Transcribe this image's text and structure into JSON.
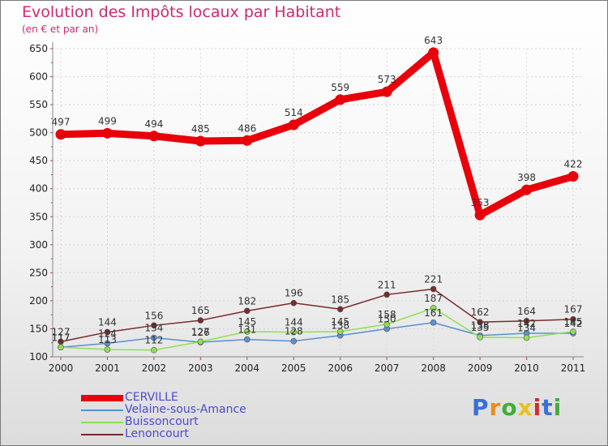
{
  "header": {
    "title": "Evolution des Impôts locaux par Habitant",
    "subtitle": "(en € et par an)"
  },
  "logo": {
    "letters": [
      "P",
      "r",
      "o",
      "x",
      "i",
      "t",
      "i"
    ],
    "colors": [
      "#3a6fd8",
      "#f08a1c",
      "#3fae3a",
      "#e8c21a",
      "#d82b2b",
      "#3a6fd8",
      "#3fae3a"
    ]
  },
  "chart_data": {
    "type": "line",
    "x": [
      "2000",
      "2001",
      "2002",
      "2003",
      "2004",
      "2005",
      "2006",
      "2007",
      "2008",
      "2009",
      "2010",
      "2011"
    ],
    "ylim": [
      100,
      650
    ],
    "yticks": [
      "100",
      "150",
      "200",
      "250",
      "300",
      "350",
      "400",
      "450",
      "500",
      "550",
      "600",
      "650"
    ],
    "grid": true,
    "legend_position": "bottom-left",
    "series": [
      {
        "name": "CERVILLE",
        "color": "#e8000b",
        "width": 9,
        "values": [
          497,
          499,
          494,
          485,
          486,
          514,
          559,
          573,
          643,
          353,
          398,
          422
        ],
        "labels": [
          "497",
          "499",
          "494",
          "485",
          "486",
          "514",
          "559",
          "573",
          "643",
          "353",
          "398",
          "422"
        ]
      },
      {
        "name": "Velaine-sous-Amance",
        "color": "#5b8fd3",
        "width": 1.5,
        "values": [
          117,
          124,
          134,
          126,
          131,
          128,
          138,
          150,
          161,
          138,
          142,
          142
        ],
        "labels": [
          "117",
          "124",
          "134",
          "126",
          "131",
          "128",
          "138",
          "150",
          "161",
          "138",
          "142",
          "142"
        ]
      },
      {
        "name": "Buissoncourt",
        "color": "#8ee055",
        "width": 1.5,
        "values": [
          117,
          113,
          112,
          127,
          145,
          144,
          145,
          158,
          187,
          135,
          134,
          145
        ],
        "labels": [
          "117",
          "113",
          "112",
          "127",
          "145",
          "144",
          "145",
          "158",
          "187",
          "135",
          "134",
          "145"
        ]
      },
      {
        "name": "Lenoncourt",
        "color": "#7a2b2b",
        "width": 1.5,
        "values": [
          127,
          144,
          156,
          165,
          182,
          196,
          185,
          211,
          221,
          162,
          164,
          167
        ],
        "labels": [
          "127",
          "144",
          "156",
          "165",
          "182",
          "196",
          "185",
          "211",
          "221",
          "162",
          "164",
          "167"
        ]
      }
    ]
  }
}
